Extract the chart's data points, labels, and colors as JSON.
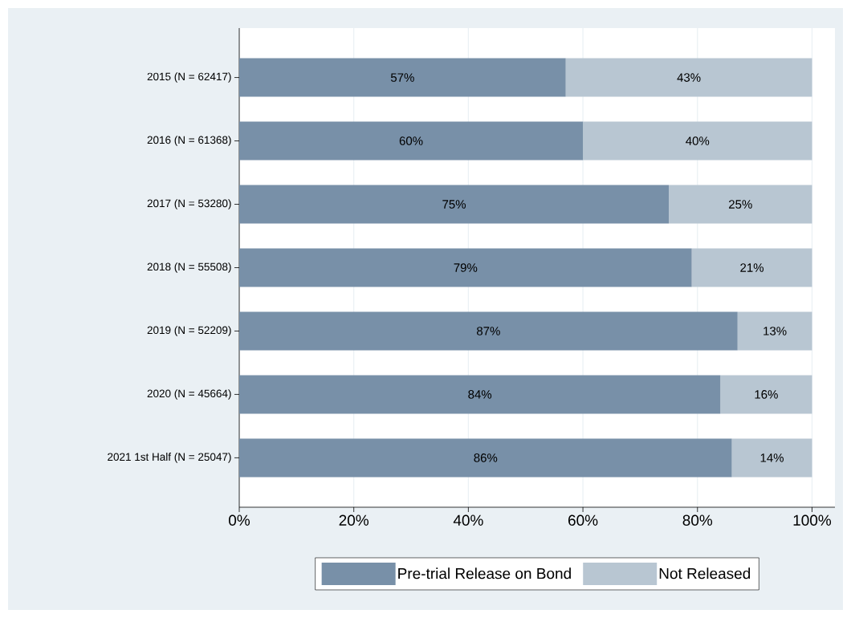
{
  "chart_data": {
    "type": "bar",
    "orientation": "horizontal",
    "stacked": true,
    "categories": [
      "2015 (N = 62417)",
      "2016 (N = 61368)",
      "2017 (N = 53280)",
      "2018 (N = 55508)",
      "2019 (N = 52209)",
      "2020 (N = 45664)",
      "2021 1st Half (N = 25047)"
    ],
    "series": [
      {
        "name": "Pre-trial Release on Bond",
        "color": "#7890a8",
        "values": [
          57,
          60,
          75,
          79,
          87,
          84,
          86
        ],
        "value_labels": [
          "57%",
          "60%",
          "75%",
          "79%",
          "87%",
          "84%",
          "86%"
        ]
      },
      {
        "name": "Not Released",
        "color": "#b8c6d2",
        "values": [
          43,
          40,
          25,
          21,
          13,
          16,
          14
        ],
        "value_labels": [
          "43%",
          "40%",
          "25%",
          "21%",
          "13%",
          "16%",
          "14%"
        ]
      }
    ],
    "xlim": [
      0,
      104
    ],
    "xticks": [
      {
        "value": 0,
        "label": "0%"
      },
      {
        "value": 20,
        "label": "20%"
      },
      {
        "value": 40,
        "label": "40%"
      },
      {
        "value": 60,
        "label": "60%"
      },
      {
        "value": 80,
        "label": "80%"
      },
      {
        "value": 100,
        "label": "100%"
      }
    ],
    "grid": "x",
    "legend": "bottom"
  }
}
